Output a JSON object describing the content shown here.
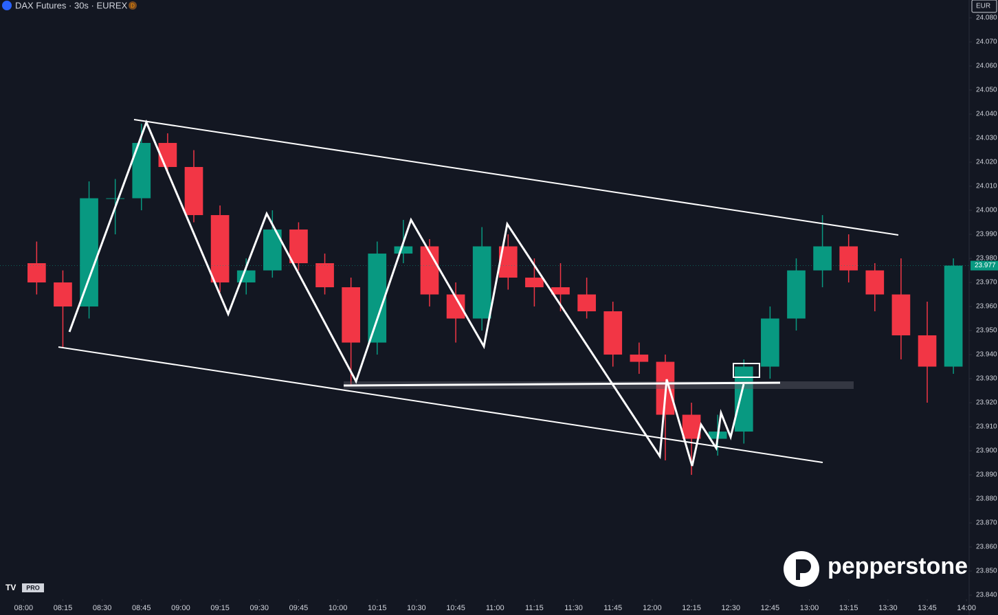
{
  "header": {
    "title": "DAX Futures · 30s · EUREX",
    "badge": "D",
    "currency": "EUR"
  },
  "chart_data": {
    "type": "candlestick",
    "x": [
      "08:00",
      "08:10",
      "08:20",
      "08:30",
      "08:40",
      "08:50",
      "09:00",
      "09:10",
      "09:20",
      "09:30",
      "09:40",
      "09:50",
      "10:00",
      "10:10",
      "10:20",
      "10:30",
      "10:40",
      "10:50",
      "11:00",
      "11:10",
      "11:20",
      "11:30",
      "11:40",
      "11:50",
      "12:00",
      "12:10",
      "12:20",
      "12:30",
      "12:40",
      "12:50",
      "13:00",
      "13:10",
      "13:20",
      "13:30",
      "13:40",
      "13:50"
    ],
    "open": [
      23978,
      23970,
      23960,
      24005,
      24005,
      24028,
      24018,
      23998,
      23970,
      23975,
      23992,
      23978,
      23968,
      23945,
      23982,
      23985,
      23965,
      23955,
      23985,
      23972,
      23968,
      23965,
      23958,
      23940,
      23937,
      23915,
      23905,
      23908,
      23935,
      23955,
      23975,
      23985,
      23975,
      23965,
      23948,
      23935
    ],
    "high": [
      23987,
      23975,
      24012,
      24013,
      24036,
      24032,
      24025,
      24002,
      23980,
      24000,
      23995,
      23982,
      23972,
      23987,
      23996,
      23988,
      23970,
      23993,
      23990,
      23980,
      23978,
      23972,
      23962,
      23945,
      23940,
      23920,
      23915,
      23938,
      23960,
      23980,
      23998,
      23990,
      23978,
      23980,
      23962,
      23980
    ],
    "low": [
      23965,
      23943,
      23955,
      23990,
      24000,
      24015,
      23995,
      23966,
      23965,
      23972,
      23975,
      23965,
      23927,
      23940,
      23978,
      23960,
      23945,
      23950,
      23967,
      23960,
      23958,
      23955,
      23935,
      23932,
      23896,
      23890,
      23898,
      23903,
      23930,
      23950,
      23968,
      23970,
      23958,
      23938,
      23920,
      23932
    ],
    "close": [
      23970,
      23960,
      24005,
      24005,
      24028,
      24018,
      23998,
      23970,
      23975,
      23992,
      23978,
      23968,
      23945,
      23982,
      23985,
      23965,
      23955,
      23985,
      23972,
      23968,
      23965,
      23958,
      23940,
      23937,
      23915,
      23905,
      23908,
      23935,
      23955,
      23975,
      23985,
      23975,
      23965,
      23948,
      23935,
      23977
    ],
    "up_color": "#089981",
    "down_color": "#f23645",
    "last_price_label": "23.977",
    "xlim": [
      "07:51",
      "14:01"
    ],
    "xticks": [
      "08:00",
      "08:15",
      "08:30",
      "08:45",
      "09:00",
      "09:15",
      "09:30",
      "09:45",
      "10:00",
      "10:15",
      "10:30",
      "10:45",
      "11:00",
      "11:15",
      "11:30",
      "11:45",
      "12:00",
      "12:15",
      "12:30",
      "12:45",
      "13:00",
      "13:15",
      "13:30",
      "13:45",
      "14:00"
    ],
    "ylim": [
      23838.3,
      24087.43
    ],
    "yticks": [
      {
        "value": 23840,
        "label": "23.840"
      },
      {
        "value": 23850,
        "label": "23.850"
      },
      {
        "value": 23860,
        "label": "23.860"
      },
      {
        "value": 23870,
        "label": "23.870"
      },
      {
        "value": 23880,
        "label": "23.880"
      },
      {
        "value": 23890,
        "label": "23.890"
      },
      {
        "value": 23900,
        "label": "23.900"
      },
      {
        "value": 23910,
        "label": "23.910"
      },
      {
        "value": 23920,
        "label": "23.920"
      },
      {
        "value": 23930,
        "label": "23.930"
      },
      {
        "value": 23940,
        "label": "23.940"
      },
      {
        "value": 23950,
        "label": "23.950"
      },
      {
        "value": 23960,
        "label": "23.960"
      },
      {
        "value": 23970,
        "label": "23.970"
      },
      {
        "value": 23980,
        "label": "23.980"
      },
      {
        "value": 23990,
        "label": "23.990"
      },
      {
        "value": 24000,
        "label": "24.000"
      },
      {
        "value": 24010,
        "label": "24.010"
      },
      {
        "value": 24020,
        "label": "24.020"
      },
      {
        "value": 24030,
        "label": "24.030"
      },
      {
        "value": 24040,
        "label": "24.040"
      },
      {
        "value": 24050,
        "label": "24.050"
      },
      {
        "value": 24060,
        "label": "24.060"
      },
      {
        "value": 24070,
        "label": "24.070"
      },
      {
        "value": 24080,
        "label": "24.080"
      }
    ],
    "grid": false
  },
  "branding": {
    "logo": "pepperstone",
    "tv_badge": "PRO"
  }
}
